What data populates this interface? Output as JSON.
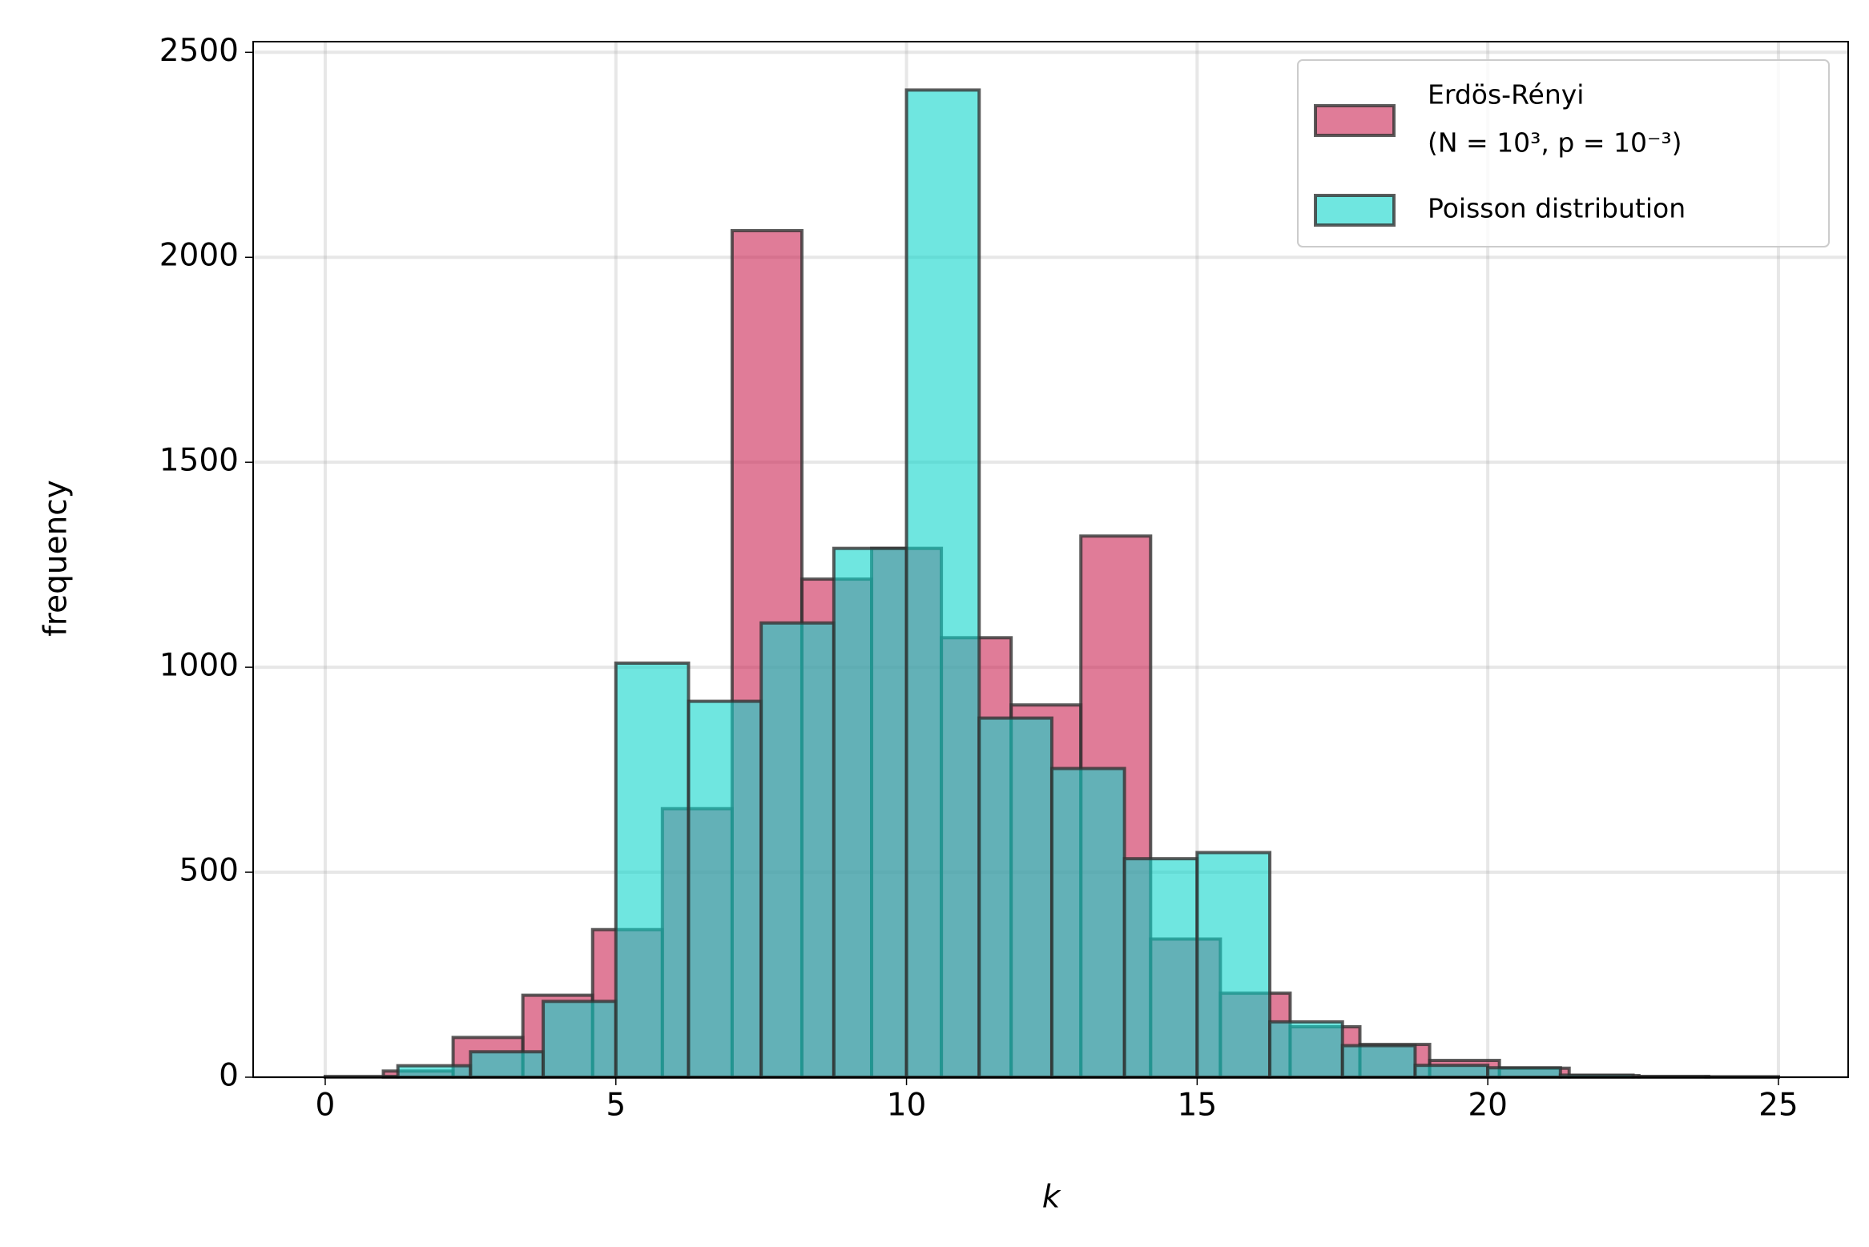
{
  "chart_data": {
    "type": "histogram",
    "xlabel": "k",
    "ylabel": "frequency",
    "xlim": [
      -1.24,
      26.2
    ],
    "ylim": [
      0,
      2526
    ],
    "xticks": [
      0,
      5,
      10,
      15,
      20,
      25
    ],
    "yticks": [
      0,
      500,
      1000,
      1500,
      2000,
      2500
    ],
    "grid": true,
    "alpha": 0.6,
    "edgecolor": "#333333",
    "legend": "upper right",
    "series": [
      {
        "name": [
          "Erdös-Rényi",
          "(N = 10³, p = 10⁻³)"
        ],
        "color": "#cb2553",
        "bins": [
          1.0,
          2.2,
          3.4,
          4.6,
          5.8,
          7.0,
          8.2,
          9.4,
          10.6,
          11.8,
          13.0,
          14.2,
          15.4,
          16.6,
          17.8,
          19.0,
          20.2,
          21.4,
          22.6,
          23.8,
          25.0
        ],
        "values": [
          15,
          97,
          200,
          360,
          655,
          2065,
          1215,
          1290,
          1072,
          908,
          1320,
          337,
          205,
          123,
          80,
          41,
          22,
          4,
          2,
          1
        ]
      },
      {
        "name": [
          "Poisson distribution"
        ],
        "color": "#0fd5cb",
        "bins": [
          0,
          1.25,
          2.5,
          3.75,
          5.0,
          6.25,
          7.5,
          8.75,
          10.0,
          11.25,
          12.5,
          13.75,
          15.0,
          16.25,
          17.5,
          18.75,
          20.0,
          21.25,
          22.5,
          23.75,
          25.0
        ],
        "values": [
          2,
          28,
          62,
          185,
          1010,
          917,
          1108,
          1290,
          2408,
          876,
          753,
          533,
          548,
          135,
          77,
          29,
          23,
          5,
          1,
          1
        ]
      }
    ]
  }
}
